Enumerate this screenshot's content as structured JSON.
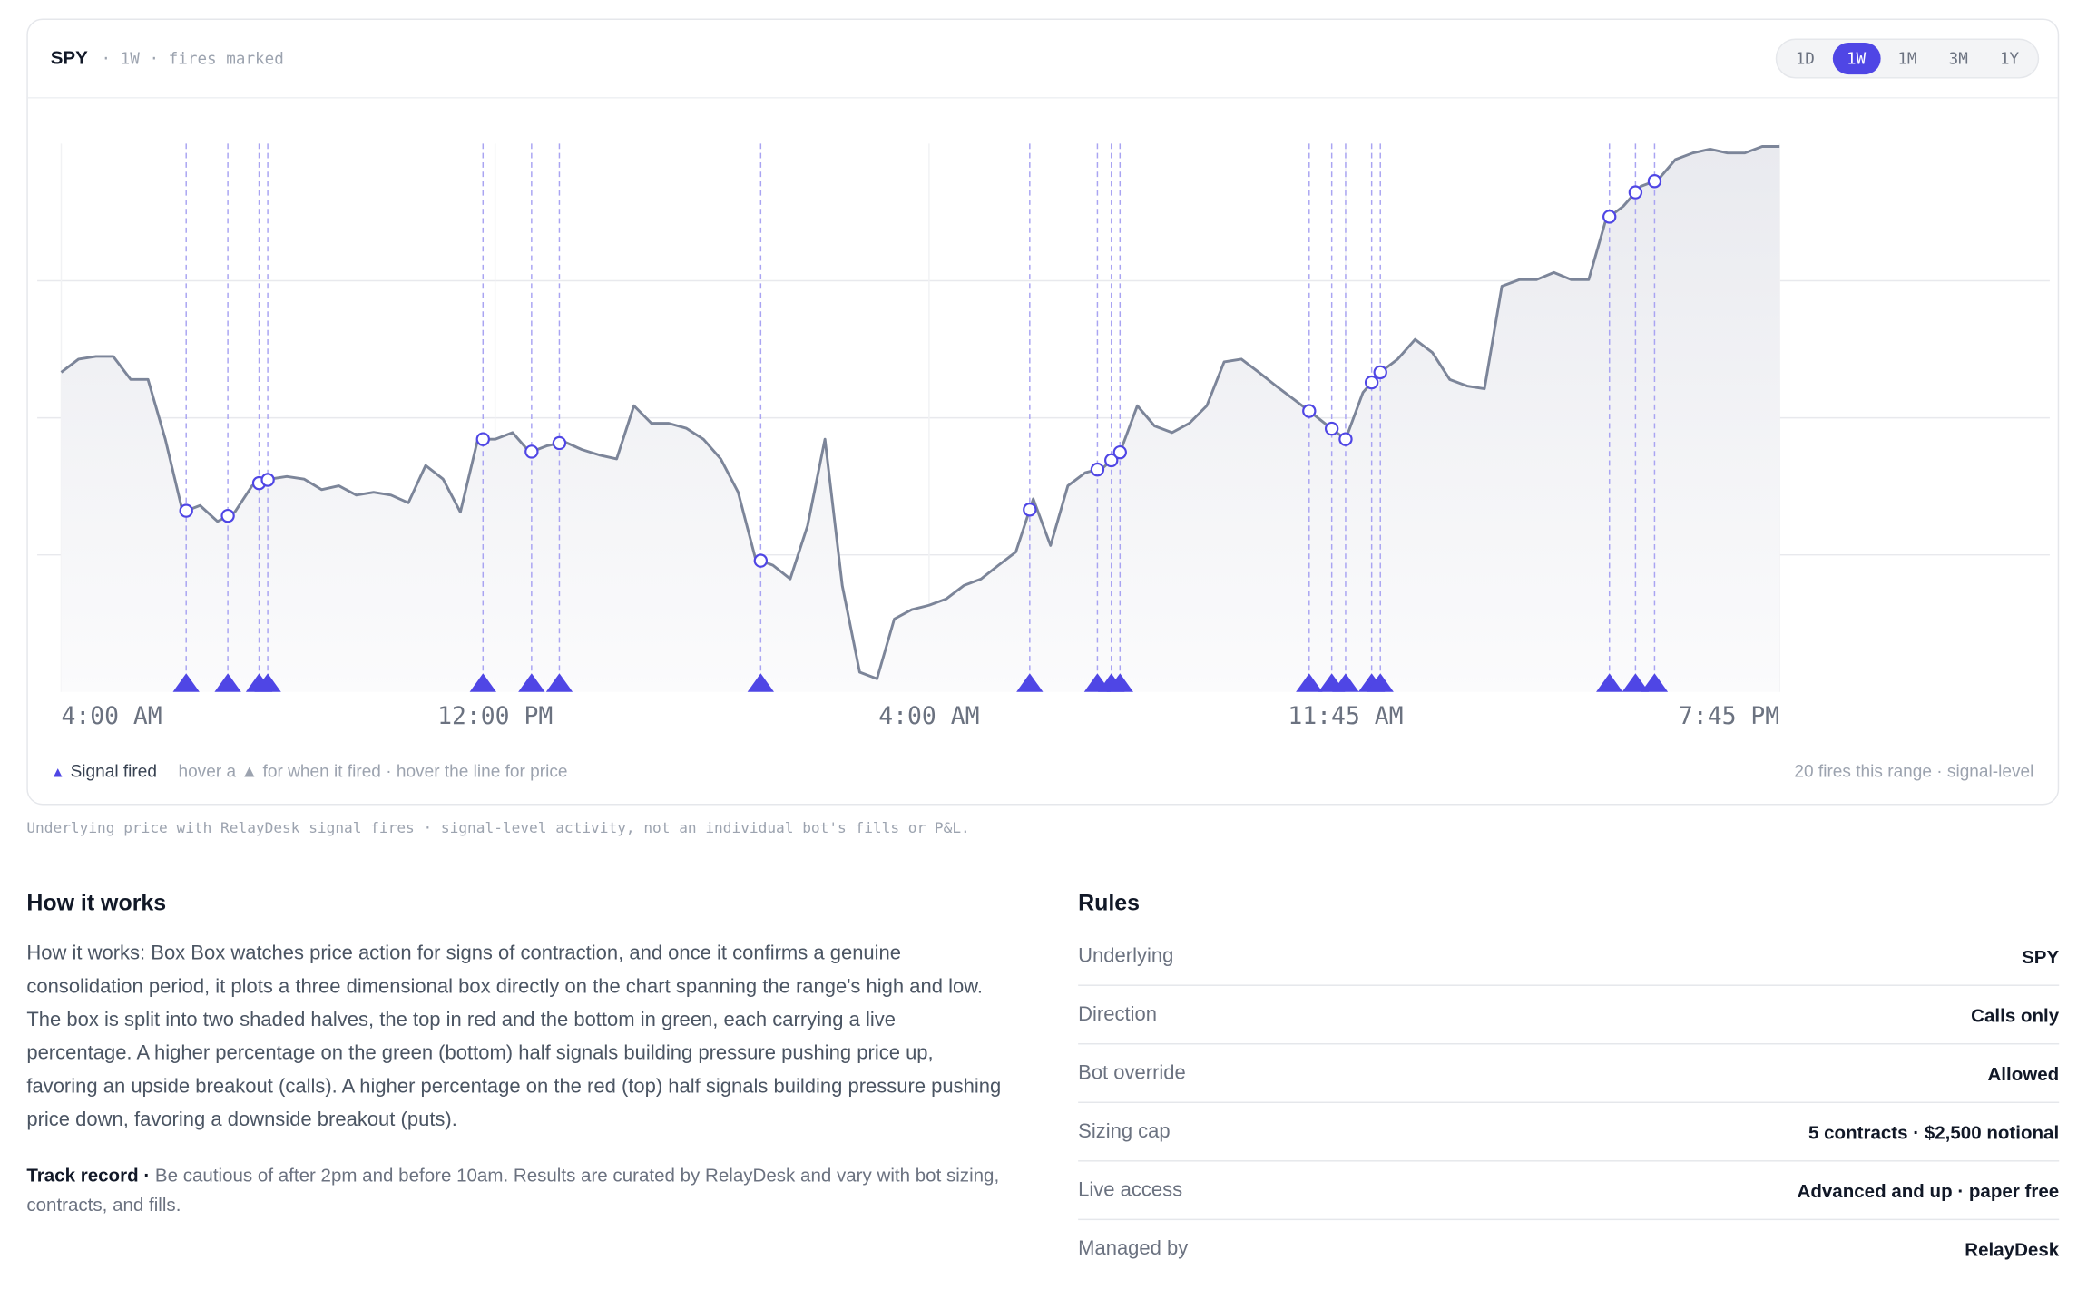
{
  "header": {
    "symbol": "SPY",
    "subtitle": "· 1W · fires marked",
    "ranges": [
      "1D",
      "1W",
      "1M",
      "3M",
      "1Y"
    ],
    "active_range": 1
  },
  "chart_data": {
    "type": "line",
    "categories": [
      "4:00 AM",
      null,
      null,
      null,
      null,
      null,
      null,
      null,
      null,
      null,
      null,
      null,
      null,
      null,
      null,
      null,
      null,
      null,
      null,
      null,
      null,
      null,
      null,
      null,
      null,
      "12:00 PM",
      null,
      null,
      null,
      null,
      null,
      null,
      null,
      null,
      null,
      null,
      null,
      null,
      null,
      null,
      null,
      null,
      null,
      null,
      null,
      null,
      null,
      null,
      null,
      null,
      "4:00 AM",
      null,
      null,
      null,
      null,
      null,
      null,
      null,
      null,
      null,
      null,
      null,
      null,
      null,
      null,
      null,
      null,
      null,
      null,
      null,
      null,
      null,
      null,
      null,
      "11:45 AM",
      null,
      null,
      null,
      null,
      null,
      null,
      null,
      null,
      null,
      null,
      null,
      null,
      null,
      null,
      null,
      null,
      null,
      null,
      null,
      null,
      null,
      null,
      null,
      null,
      "7:45 PM"
    ],
    "values": [
      58.3,
      60.7,
      61.2,
      61.2,
      57.0,
      57.0,
      46.1,
      32.8,
      34.0,
      31.1,
      32.8,
      37.6,
      38.8,
      39.3,
      38.8,
      36.9,
      37.6,
      35.9,
      36.4,
      35.9,
      34.5,
      41.3,
      38.8,
      32.8,
      46.1,
      46.1,
      47.3,
      43.7,
      44.9,
      45.6,
      44.2,
      43.2,
      42.5,
      52.2,
      49.0,
      49.0,
      48.1,
      46.1,
      42.5,
      36.4,
      24.3,
      23.1,
      20.6,
      30.3,
      46.1,
      19.4,
      3.6,
      2.4,
      13.3,
      15.0,
      15.8,
      17.0,
      19.4,
      20.6,
      23.1,
      25.5,
      35.2,
      26.7,
      37.6,
      40.0,
      40.8,
      43.7,
      52.2,
      48.5,
      47.3,
      49.0,
      52.2,
      60.2,
      60.7,
      58.3,
      55.8,
      53.4,
      51.0,
      48.5,
      46.1,
      54.6,
      58.3,
      60.7,
      64.3,
      61.9,
      57.0,
      55.8,
      55.3,
      74.0,
      75.2,
      75.2,
      76.5,
      75.2,
      75.2,
      86.2,
      88.6,
      92.2,
      93.4,
      97.1,
      98.3,
      99.0,
      98.3,
      98.3,
      99.5,
      99.5
    ],
    "fires": [
      7.2,
      9.6,
      11.4,
      11.9,
      24.3,
      27.1,
      28.7,
      40.3,
      55.8,
      59.7,
      60.5,
      61.0,
      71.9,
      73.2,
      74.0,
      75.5,
      76.0,
      89.2,
      90.7,
      91.8
    ],
    "color": "#7c8599",
    "fire_color": "#4f46e5",
    "ylim": [
      0,
      100
    ],
    "yticks": [
      25,
      50,
      75
    ],
    "grid": true
  },
  "legend": {
    "label": "Signal fired",
    "hint": "hover a ▲ for when it fired · hover the line for price",
    "count": "20 fires this range · signal-level"
  },
  "caption": "Underlying price with RelayDesk signal fires · signal-level activity, not an individual bot's fills or P&L.",
  "how_it_works": {
    "title": "How it works",
    "body": "How it works: Box Box watches price action for signs of contraction, and once it confirms a genuine consolidation period, it plots a three dimensional box directly on the chart spanning the range's high and low. The box is split into two shaded halves, the top in red and the bottom in green, each carrying a live percentage. A higher percentage on the green (bottom) half signals building pressure pushing price up, favoring an upside breakout (calls). A higher percentage on the red (top) half signals building pressure pushing price down, favoring a downside breakout (puts).",
    "track_label": "Track record ·",
    "track_text": "Be cautious of after 2pm and before 10am. Results are curated by RelayDesk and vary with bot sizing, contracts, and fills."
  },
  "rules": {
    "title": "Rules",
    "rows": [
      [
        "Underlying",
        "SPY"
      ],
      [
        "Direction",
        "Calls only"
      ],
      [
        "Bot override",
        "Allowed"
      ],
      [
        "Sizing cap",
        "5 contracts · $2,500 notional"
      ],
      [
        "Live access",
        "Advanced and up · paper free"
      ],
      [
        "Managed by",
        "RelayDesk"
      ]
    ]
  }
}
